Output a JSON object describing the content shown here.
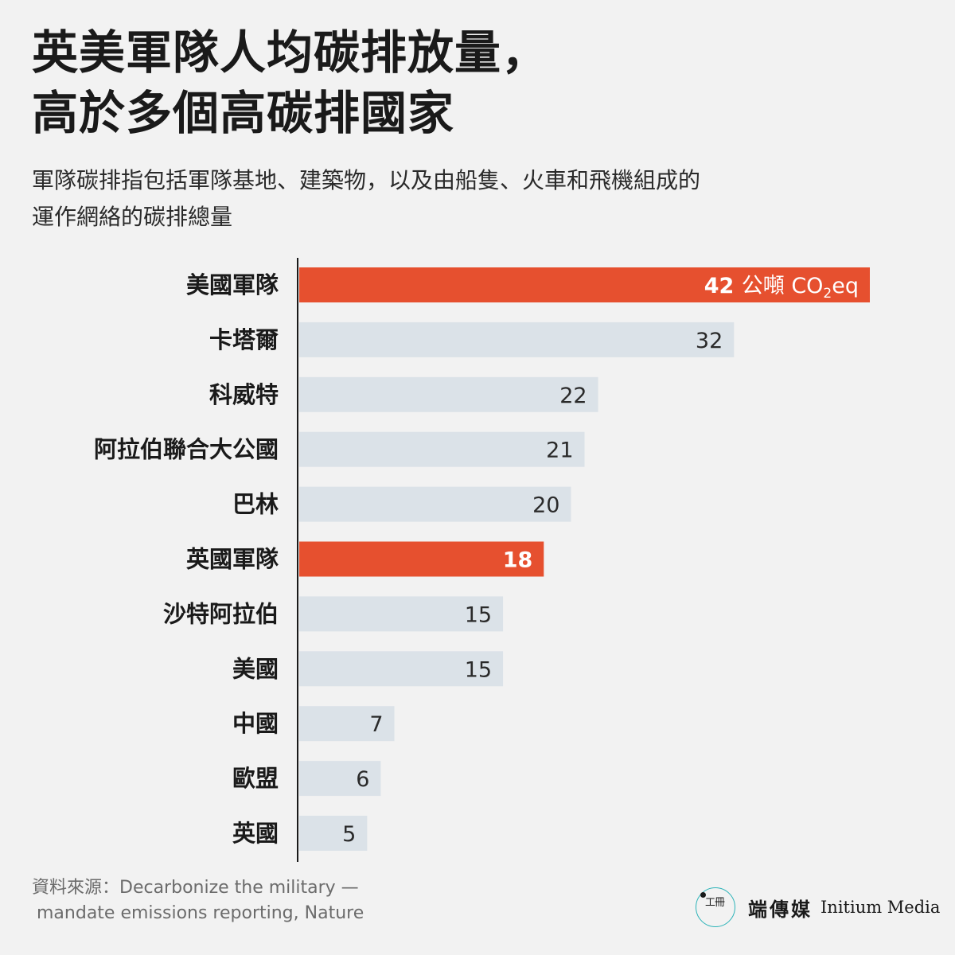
{
  "title_lines": [
    "英美軍隊人均碳排放量，",
    "高於多個高碳排國家"
  ],
  "subtitle_lines": [
    "軍隊碳排指包括軍隊基地、建築物，以及由船隻、火車和飛機組成的",
    "運作網絡的碳排總量"
  ],
  "source_lines": [
    "資料來源：Decarbonize the military —",
    "mandate emissions reporting, Nature"
  ],
  "brand": {
    "logo_icon": "initium-logo-icon",
    "name_zh": "端傳媒",
    "name_en": "Initium Media"
  },
  "colors": {
    "highlight": "#e6502f",
    "default_bar": "#dbe2e8",
    "axis": "#1a1a1a",
    "text": "#1a1a1a"
  },
  "chart_data": {
    "type": "bar",
    "orientation": "horizontal",
    "categories": [
      "美國軍隊",
      "卡塔爾",
      "科威特",
      "阿拉伯聯合大公國",
      "巴林",
      "英國軍隊",
      "沙特阿拉伯",
      "美國",
      "中國",
      "歐盟",
      "英國"
    ],
    "values": [
      42,
      32,
      22,
      21,
      20,
      18,
      15,
      15,
      7,
      6,
      5
    ],
    "highlighted": [
      "美國軍隊",
      "英國軍隊"
    ],
    "value_unit_label": {
      "before_subscript": "公噸 CO",
      "subscript": "2",
      "after_subscript": "eq"
    },
    "title": "英美軍隊人均碳排放量，高於多個高碳排國家",
    "xlabel": "",
    "ylabel": "",
    "xlim": [
      0,
      42
    ],
    "grid": false,
    "legend": "none"
  }
}
